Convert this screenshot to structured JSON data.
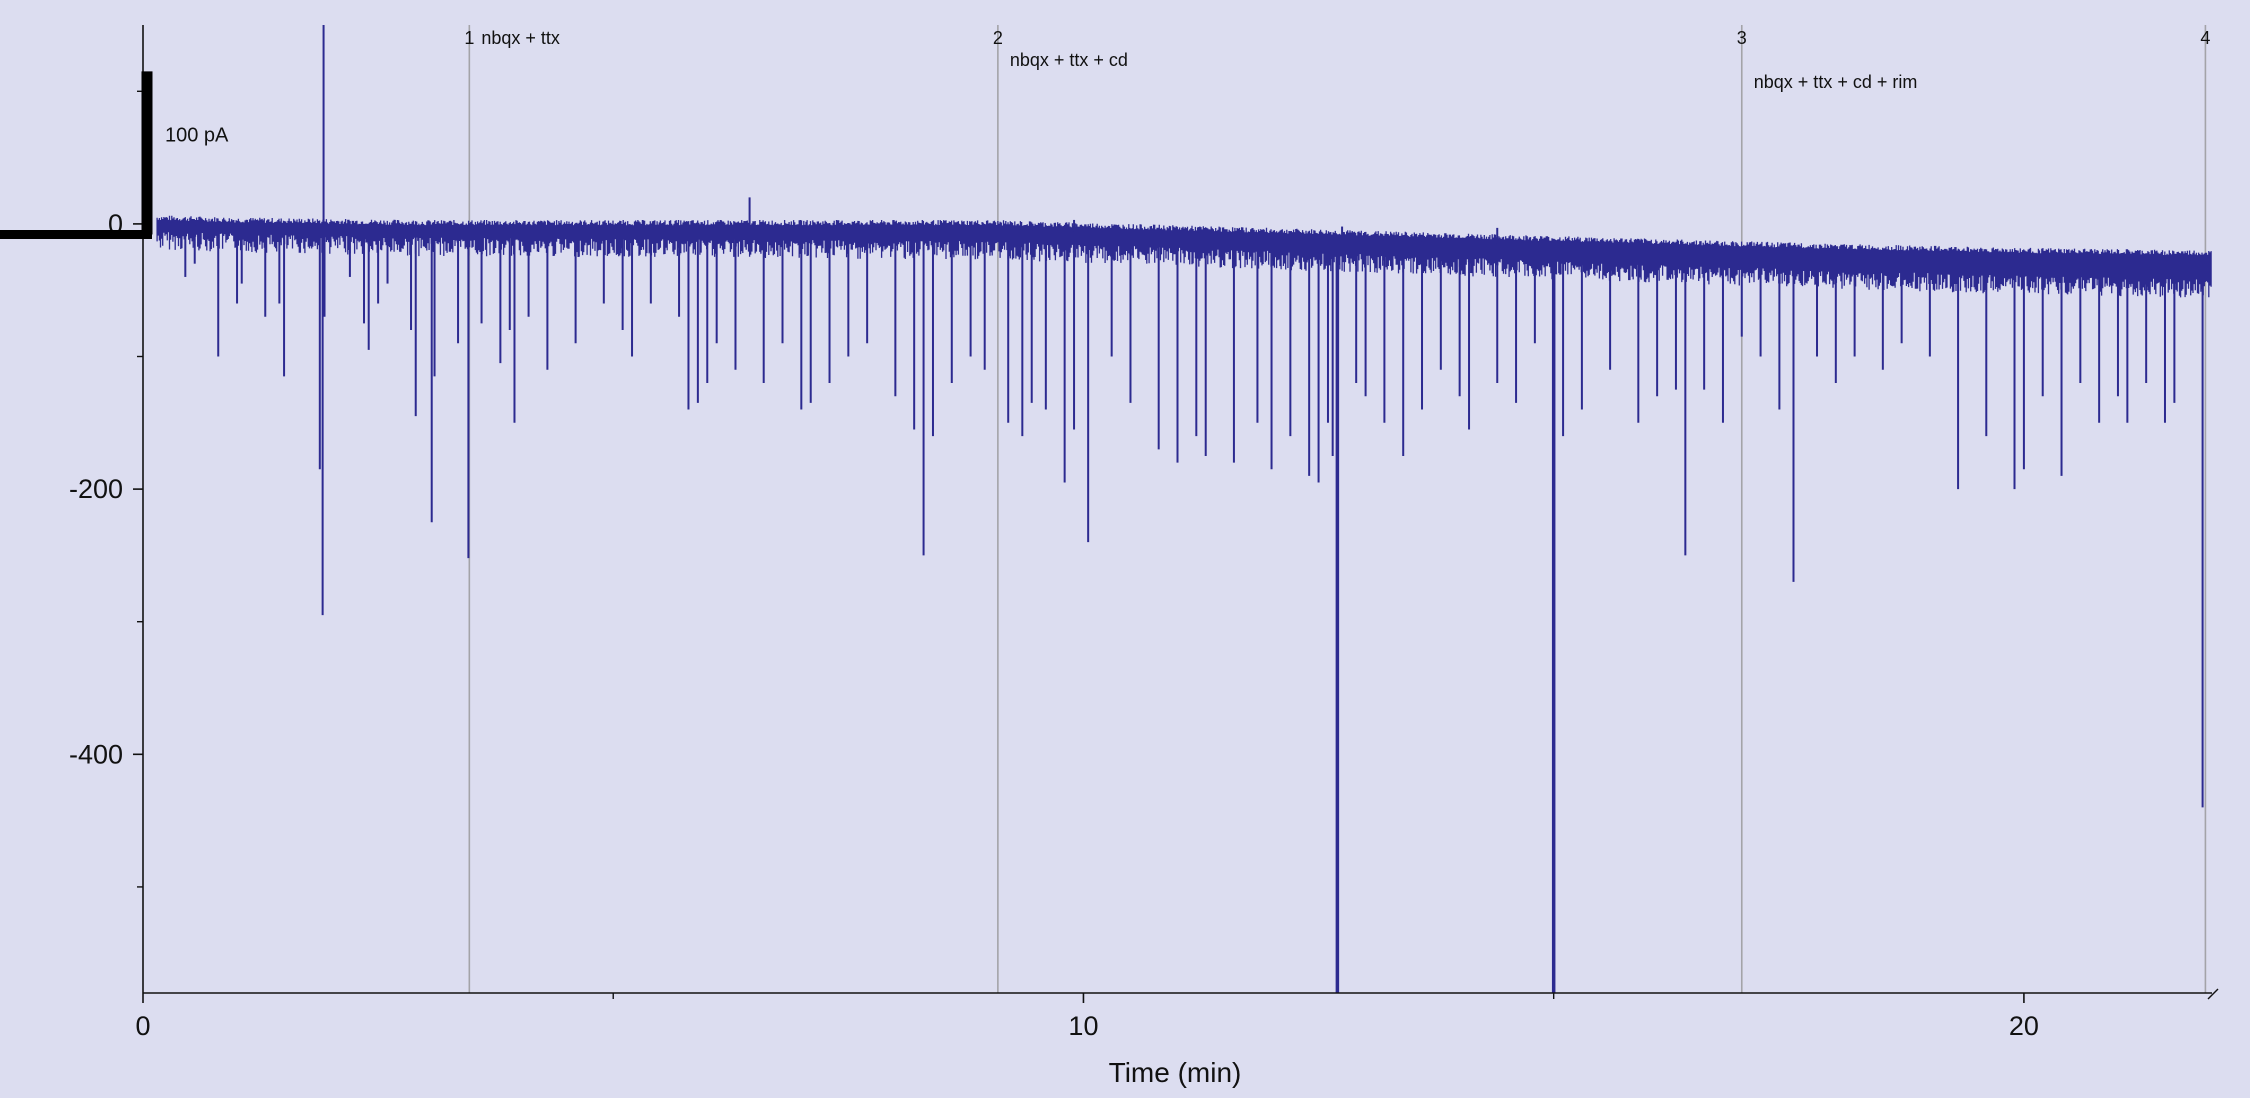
{
  "chart_data": {
    "type": "line",
    "title": "",
    "xlabel": "Time (min)",
    "ylabel": "",
    "xlim": [
      0,
      22
    ],
    "ylim": [
      -580,
      150
    ],
    "x_ticks": [
      0,
      10,
      20
    ],
    "x_minor_ticks": [
      5,
      15
    ],
    "y_ticks": [
      0,
      -200,
      -400
    ],
    "y_minor_ticks": [
      100,
      -100,
      -300,
      -500
    ],
    "grid": false,
    "series_color": "#2c2a90",
    "marker_color": "#a3a3a8",
    "scale_bar": {
      "label": "100 pA",
      "value": 100
    },
    "markers": [
      {
        "number": "1",
        "x": 3.47,
        "label": "nbqx + ttx"
      },
      {
        "number": "2",
        "x": 9.09,
        "label": "nbqx + ttx + cd"
      },
      {
        "number": "3",
        "x": 17.0,
        "label": "nbqx + ttx + cd + rim"
      },
      {
        "number": "4",
        "x": 21.93,
        "label": ""
      }
    ],
    "series": [
      {
        "baseline": [
          [
            0,
            0
          ],
          [
            1,
            -2
          ],
          [
            3,
            -4
          ],
          [
            6,
            -4
          ],
          [
            9,
            -4
          ],
          [
            11,
            -8
          ],
          [
            13,
            -12
          ],
          [
            16,
            -18
          ],
          [
            18,
            -22
          ],
          [
            20,
            -25
          ],
          [
            22,
            -27
          ]
        ],
        "events": [
          [
            0.45,
            -40
          ],
          [
            0.55,
            -30
          ],
          [
            0.8,
            -100
          ],
          [
            1.0,
            -60
          ],
          [
            1.05,
            -45
          ],
          [
            1.3,
            -70
          ],
          [
            1.45,
            -60
          ],
          [
            1.5,
            -115
          ],
          [
            1.88,
            -185
          ],
          [
            1.91,
            -295
          ],
          [
            1.93,
            -70
          ],
          [
            2.2,
            -40
          ],
          [
            2.35,
            -75
          ],
          [
            2.4,
            -95
          ],
          [
            2.5,
            -60
          ],
          [
            2.6,
            -45
          ],
          [
            2.85,
            -80
          ],
          [
            2.9,
            -145
          ],
          [
            3.07,
            -225
          ],
          [
            3.1,
            -115
          ],
          [
            3.35,
            -90
          ],
          [
            3.46,
            -252
          ],
          [
            3.6,
            -75
          ],
          [
            3.8,
            -105
          ],
          [
            3.9,
            -80
          ],
          [
            3.95,
            -150
          ],
          [
            4.1,
            -70
          ],
          [
            4.3,
            -110
          ],
          [
            4.6,
            -90
          ],
          [
            4.9,
            -60
          ],
          [
            5.1,
            -80
          ],
          [
            5.2,
            -100
          ],
          [
            5.4,
            -60
          ],
          [
            5.7,
            -70
          ],
          [
            5.8,
            -140
          ],
          [
            5.9,
            -135
          ],
          [
            6.0,
            -120
          ],
          [
            6.1,
            -90
          ],
          [
            6.3,
            -110
          ],
          [
            6.6,
            -120
          ],
          [
            6.8,
            -90
          ],
          [
            7.0,
            -140
          ],
          [
            7.1,
            -135
          ],
          [
            7.3,
            -120
          ],
          [
            7.5,
            -100
          ],
          [
            7.7,
            -90
          ],
          [
            8.0,
            -130
          ],
          [
            8.2,
            -155
          ],
          [
            8.3,
            -250
          ],
          [
            8.4,
            -160
          ],
          [
            8.6,
            -120
          ],
          [
            8.8,
            -100
          ],
          [
            8.95,
            -110
          ],
          [
            9.2,
            -150
          ],
          [
            9.35,
            -160
          ],
          [
            9.45,
            -135
          ],
          [
            9.6,
            -140
          ],
          [
            9.8,
            -195
          ],
          [
            9.9,
            -155
          ],
          [
            10.05,
            -240
          ],
          [
            10.3,
            -100
          ],
          [
            10.5,
            -135
          ],
          [
            10.8,
            -170
          ],
          [
            11.0,
            -180
          ],
          [
            11.2,
            -160
          ],
          [
            11.3,
            -175
          ],
          [
            11.6,
            -180
          ],
          [
            11.85,
            -150
          ],
          [
            12.0,
            -185
          ],
          [
            12.2,
            -160
          ],
          [
            12.4,
            -190
          ],
          [
            12.5,
            -195
          ],
          [
            12.6,
            -150
          ],
          [
            12.65,
            -175
          ],
          [
            12.7,
            -210
          ],
          [
            12.9,
            -120
          ],
          [
            13.0,
            -130
          ],
          [
            13.2,
            -150
          ],
          [
            13.4,
            -175
          ],
          [
            13.6,
            -140
          ],
          [
            13.8,
            -110
          ],
          [
            14.0,
            -130
          ],
          [
            14.1,
            -155
          ],
          [
            14.4,
            -120
          ],
          [
            14.6,
            -135
          ],
          [
            14.8,
            -90
          ],
          [
            15.1,
            -160
          ],
          [
            15.3,
            -140
          ],
          [
            15.6,
            -110
          ],
          [
            15.9,
            -150
          ],
          [
            16.1,
            -130
          ],
          [
            16.3,
            -125
          ],
          [
            16.4,
            -250
          ],
          [
            16.6,
            -125
          ],
          [
            16.8,
            -150
          ],
          [
            17.0,
            -85
          ],
          [
            17.2,
            -100
          ],
          [
            17.4,
            -140
          ],
          [
            17.55,
            -270
          ],
          [
            17.8,
            -100
          ],
          [
            18.0,
            -120
          ],
          [
            18.2,
            -100
          ],
          [
            18.5,
            -110
          ],
          [
            18.7,
            -90
          ],
          [
            19.0,
            -100
          ],
          [
            19.3,
            -200
          ],
          [
            19.6,
            -160
          ],
          [
            19.9,
            -200
          ],
          [
            20.0,
            -185
          ],
          [
            20.2,
            -130
          ],
          [
            20.4,
            -190
          ],
          [
            20.6,
            -120
          ],
          [
            20.8,
            -150
          ],
          [
            21.0,
            -130
          ],
          [
            21.1,
            -150
          ],
          [
            21.3,
            -120
          ],
          [
            21.5,
            -150
          ],
          [
            21.6,
            -135
          ],
          [
            21.9,
            -440
          ]
        ],
        "clipped_events": [
          12.7,
          15.0
        ],
        "positive_spikes": [
          [
            1.92,
            150
          ],
          [
            6.45,
            20
          ],
          [
            9.9,
            3
          ],
          [
            12.75,
            -2
          ],
          [
            14.4,
            -3
          ]
        ]
      }
    ]
  }
}
